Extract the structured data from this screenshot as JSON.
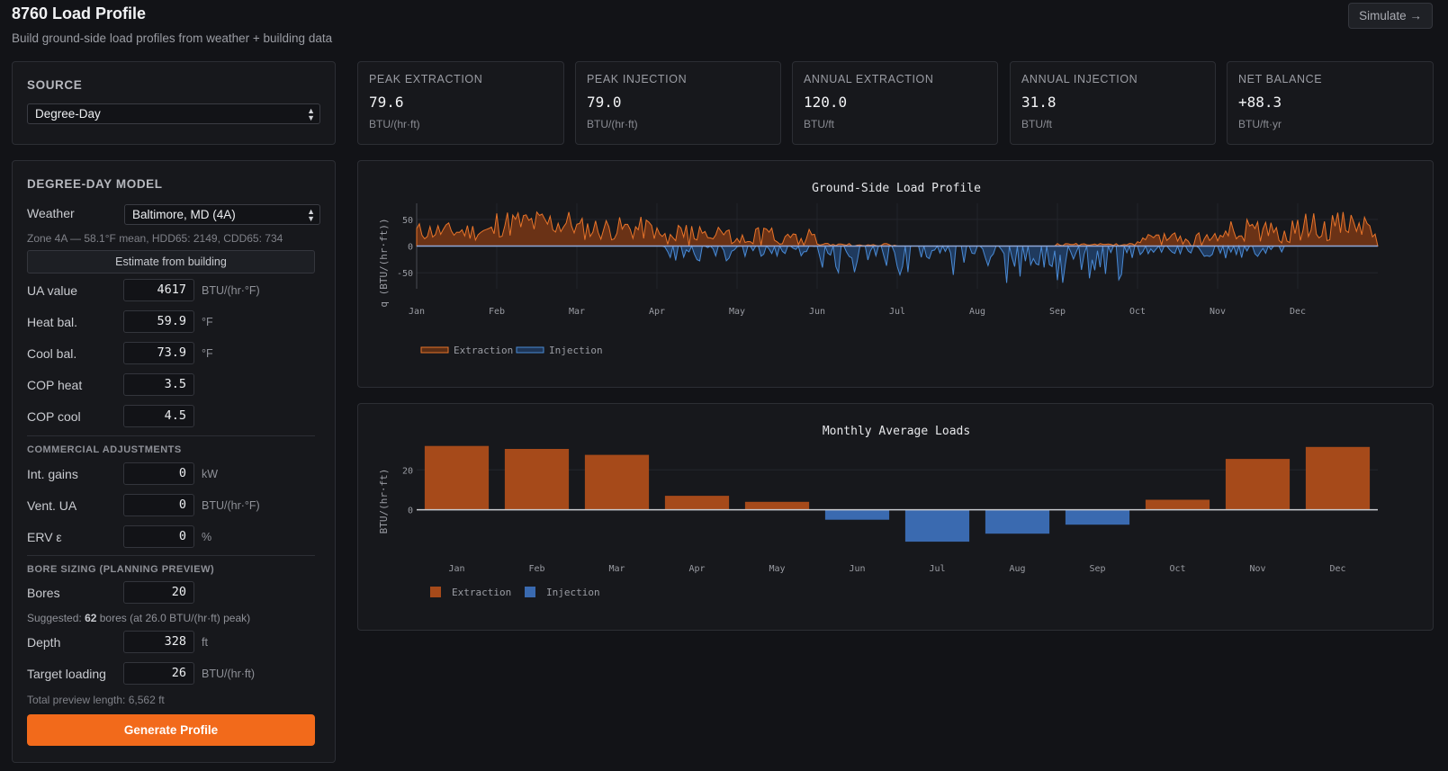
{
  "app": {
    "title": "8760 Load Profile",
    "subtitle": "Build ground-side load profiles from weather + building data",
    "simulate_label": "Simulate →"
  },
  "source": {
    "heading": "SOURCE",
    "selected": "Degree-Day"
  },
  "model": {
    "heading": "DEGREE-DAY MODEL",
    "weather_label": "Weather",
    "weather_selected": "Baltimore, MD (4A)",
    "zone_info": "Zone 4A — 58.1°F mean, HDD65: 2149, CDD65: 734",
    "estimate_label": "Estimate from building",
    "fields": [
      {
        "label": "UA value",
        "value": "4617",
        "unit": "BTU/(hr·°F)"
      },
      {
        "label": "Heat bal.",
        "value": "59.9",
        "unit": "°F"
      },
      {
        "label": "Cool bal.",
        "value": "73.9",
        "unit": "°F"
      },
      {
        "label": "COP heat",
        "value": "3.5",
        "unit": ""
      },
      {
        "label": "COP cool",
        "value": "4.5",
        "unit": ""
      }
    ],
    "commercial_heading": "COMMERCIAL ADJUSTMENTS",
    "commercial": [
      {
        "label": "Int. gains",
        "value": "0",
        "unit": "kW"
      },
      {
        "label": "Vent. UA",
        "value": "0",
        "unit": "BTU/(hr·°F)"
      },
      {
        "label": "ERV ε",
        "value": "0",
        "unit": "%"
      }
    ],
    "bore_heading": "BORE SIZING (PLANNING PREVIEW)",
    "bores": {
      "label": "Bores",
      "value": "20"
    },
    "suggested_prefix": "Suggested: ",
    "suggested_count": "62",
    "suggested_suffix": " bores (at 26.0 BTU/(hr·ft) peak)",
    "depth": {
      "label": "Depth",
      "value": "328",
      "unit": "ft"
    },
    "target": {
      "label": "Target loading",
      "value": "26",
      "unit": "BTU/(hr·ft)"
    },
    "total_preview": "Total preview length: 6,562 ft",
    "generate_label": "Generate Profile"
  },
  "stats": [
    {
      "label": "PEAK EXTRACTION",
      "value": "79.6",
      "unit": "BTU/(hr·ft)"
    },
    {
      "label": "PEAK INJECTION",
      "value": "79.0",
      "unit": "BTU/(hr·ft)"
    },
    {
      "label": "ANNUAL EXTRACTION",
      "value": "120.0",
      "unit": "BTU/ft"
    },
    {
      "label": "ANNUAL INJECTION",
      "value": "31.8",
      "unit": "BTU/ft"
    },
    {
      "label": "NET BALANCE",
      "value": "+88.3",
      "unit": "BTU/ft·yr"
    }
  ],
  "colors": {
    "extraction": "#e8742a",
    "injection": "#4a8ad4",
    "extraction_bar": "#a64a1a",
    "injection_bar": "#3a6ab0",
    "accent": "#f26a1b"
  },
  "chart_data": [
    {
      "type": "area",
      "title": "Ground-Side Load Profile",
      "ylabel": "q (BTU/(hr·ft))",
      "xlabel": "",
      "x_ticks": [
        "Jan",
        "Feb",
        "Mar",
        "Apr",
        "May",
        "Jun",
        "Jul",
        "Aug",
        "Sep",
        "Oct",
        "Nov",
        "Dec"
      ],
      "y_ticks": [
        50,
        0,
        -50
      ],
      "ylim": [
        -80,
        80
      ],
      "grid": true,
      "legend_position": "bottom-left",
      "series": [
        {
          "name": "Extraction",
          "monthly_envelope": [
            {
              "month": "Jan",
              "min": 10,
              "max": 45
            },
            {
              "month": "Feb",
              "min": 15,
              "max": 70
            },
            {
              "month": "Mar",
              "min": 10,
              "max": 55
            },
            {
              "month": "Apr",
              "min": 0,
              "max": 40
            },
            {
              "month": "May",
              "min": 0,
              "max": 35
            },
            {
              "month": "Jun",
              "min": 0,
              "max": 5
            },
            {
              "month": "Jul",
              "min": 0,
              "max": 0
            },
            {
              "month": "Aug",
              "min": 0,
              "max": 0
            },
            {
              "month": "Sep",
              "min": 0,
              "max": 5
            },
            {
              "month": "Oct",
              "min": 0,
              "max": 25
            },
            {
              "month": "Nov",
              "min": 5,
              "max": 50
            },
            {
              "month": "Dec",
              "min": 10,
              "max": 65
            }
          ]
        },
        {
          "name": "Injection",
          "monthly_envelope": [
            {
              "month": "Jan",
              "min": 0,
              "max": 0
            },
            {
              "month": "Feb",
              "min": 0,
              "max": 0
            },
            {
              "month": "Mar",
              "min": 0,
              "max": 0
            },
            {
              "month": "Apr",
              "min": -30,
              "max": 0
            },
            {
              "month": "May",
              "min": -20,
              "max": 0
            },
            {
              "month": "Jun",
              "min": -50,
              "max": 0
            },
            {
              "month": "Jul",
              "min": -55,
              "max": 0
            },
            {
              "month": "Aug",
              "min": -70,
              "max": 0
            },
            {
              "month": "Sep",
              "min": -78,
              "max": 0
            },
            {
              "month": "Oct",
              "min": -20,
              "max": 0
            },
            {
              "month": "Nov",
              "min": -25,
              "max": 0
            },
            {
              "month": "Dec",
              "min": 0,
              "max": 0
            }
          ]
        }
      ]
    },
    {
      "type": "bar",
      "title": "Monthly Average Loads",
      "ylabel": "BTU/(hr·ft)",
      "xlabel": "",
      "categories": [
        "Jan",
        "Feb",
        "Mar",
        "Apr",
        "May",
        "Jun",
        "Jul",
        "Aug",
        "Sep",
        "Oct",
        "Nov",
        "Dec"
      ],
      "values": [
        32,
        30.5,
        27.5,
        7,
        4,
        -5,
        -16,
        -12,
        -7.5,
        5,
        25.5,
        31.5
      ],
      "y_ticks": [
        20,
        0
      ],
      "ylim": [
        -20,
        35
      ],
      "grid": true,
      "legend_position": "bottom-left",
      "series_names": [
        "Extraction",
        "Injection"
      ]
    }
  ]
}
